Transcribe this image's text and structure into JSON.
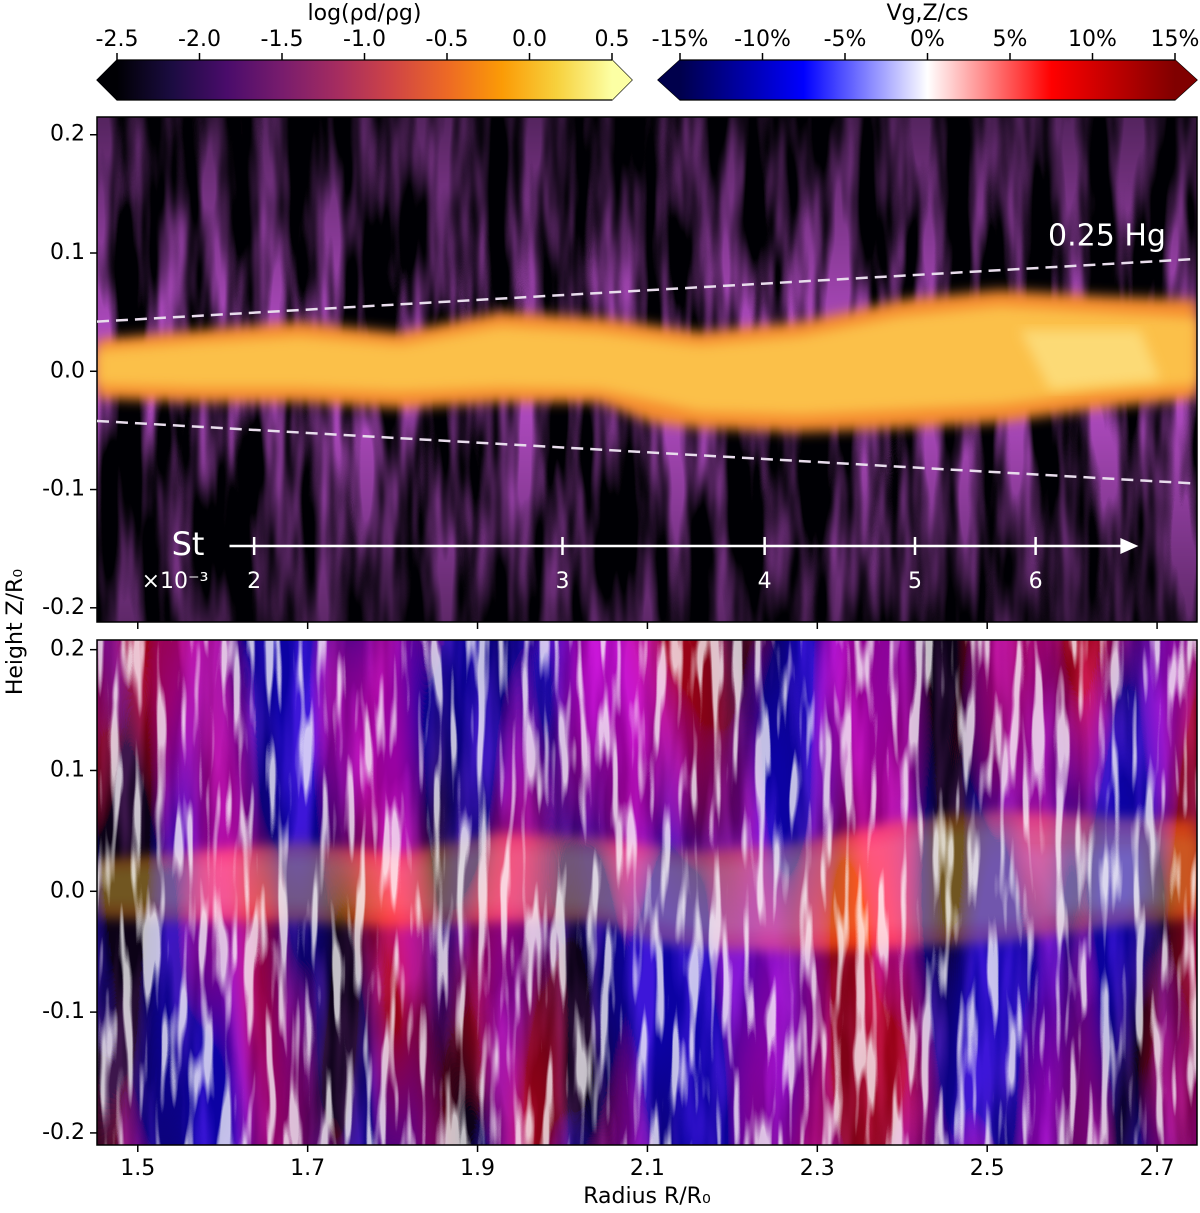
{
  "chart_data": {
    "type": "heatmap",
    "xlabel": "Radius R/R₀",
    "ylabel": "Height Z/R₀",
    "xlim": [
      1.452,
      2.747
    ],
    "xticks": [
      1.5,
      1.7,
      1.9,
      2.1,
      2.3,
      2.5,
      2.7
    ],
    "panels": [
      {
        "ylim": [
          -0.212,
          0.215
        ],
        "yticks": [
          -0.2,
          -0.1,
          {
            "value": 0,
            "label": "0.0"
          },
          0.1,
          0.2
        ]
      },
      {
        "ylim": [
          -0.21,
          0.208
        ],
        "yticks": [
          -0.2,
          -0.1,
          {
            "value": 0,
            "label": "0.0"
          },
          0.1,
          0.2
        ]
      }
    ],
    "colorbars": [
      {
        "label": "log(ρd/ρg)",
        "lim": [
          -2.5,
          0.5
        ],
        "extend": "both",
        "ticks": [
          -2.5,
          {
            "value": -2,
            "label": "-2.0"
          },
          -1.5,
          {
            "value": -1,
            "label": "-1.0"
          },
          -0.5,
          {
            "value": 0,
            "label": "0.0"
          },
          0.5
        ],
        "colors": [
          "#000004",
          "#1b0c41",
          "#4a0c6b",
          "#781c6d",
          "#a52c60",
          "#cf4446",
          "#ed6925",
          "#fb9b06",
          "#f7d13d",
          "#fcffa4"
        ]
      },
      {
        "label": "Vg,Z/cs",
        "lim": [
          -15,
          15
        ],
        "extend": "both",
        "ticks": [
          {
            "value": -15,
            "label": "-15%"
          },
          {
            "value": -10,
            "label": "-10%"
          },
          {
            "value": -5,
            "label": "-5%"
          },
          {
            "value": 0,
            "label": "0%"
          },
          {
            "value": 5,
            "label": "5%"
          },
          {
            "value": 10,
            "label": "10%"
          },
          {
            "value": 15,
            "label": "15%"
          }
        ],
        "colors": [
          "#00004c",
          "#0000ff",
          "#ffffff",
          "#ff0000",
          "#800000"
        ]
      }
    ],
    "scale_height_lines": {
      "label": "0.25 Hg",
      "x": [
        1.452,
        2.747
      ],
      "upper": [
        0.042,
        0.095
      ],
      "lower": [
        -0.042,
        -0.095
      ]
    },
    "stokes_axis": {
      "label": "St",
      "multiplier": "×10⁻³",
      "ticks": [
        2,
        3,
        4,
        5,
        6
      ],
      "positions": [
        1.637,
        2.0,
        2.238,
        2.415,
        2.557
      ],
      "range": [
        1.608,
        2.678
      ]
    }
  }
}
